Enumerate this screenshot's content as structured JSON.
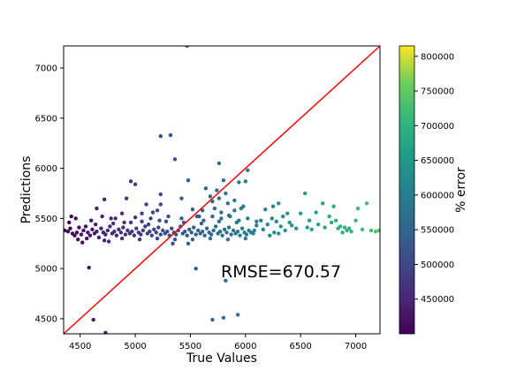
{
  "chart_data": {
    "type": "scatter",
    "title": "",
    "xlabel": "True Values",
    "ylabel": "Predictions",
    "xlim": [
      4350,
      7220
    ],
    "ylim": [
      4350,
      7220
    ],
    "xticks": [
      4500,
      5000,
      5500,
      6000,
      6500,
      7000
    ],
    "yticks": [
      4500,
      5000,
      5500,
      6000,
      6500,
      7000
    ],
    "grid": false,
    "annotation": "RMSE=670.57",
    "reference_line": {
      "from": [
        4350,
        4350
      ],
      "to": [
        7220,
        7220
      ],
      "color": "#ff0000"
    },
    "colorbar": {
      "label": "% error",
      "colormap": "viridis",
      "range": [
        400000,
        815000
      ],
      "ticks": [
        450000,
        500000,
        550000,
        600000,
        650000,
        700000,
        750000,
        800000
      ]
    },
    "series": [
      {
        "marker_color_by": "x",
        "points": [
          [
            4360,
            5380
          ],
          [
            4390,
            5370
          ],
          [
            4410,
            5400
          ],
          [
            4430,
            5350
          ],
          [
            4450,
            5330
          ],
          [
            4470,
            5360
          ],
          [
            4490,
            5410
          ],
          [
            4510,
            5340
          ],
          [
            4530,
            5380
          ],
          [
            4550,
            5420
          ],
          [
            4570,
            5360
          ],
          [
            4590,
            5330
          ],
          [
            4610,
            5390
          ],
          [
            4630,
            5350
          ],
          [
            4650,
            5370
          ],
          [
            4670,
            5310
          ],
          [
            4690,
            5400
          ],
          [
            4710,
            5360
          ],
          [
            4730,
            5340
          ],
          [
            4750,
            5380
          ],
          [
            4770,
            5420
          ],
          [
            4790,
            5350
          ],
          [
            4810,
            5370
          ],
          [
            4830,
            5330
          ],
          [
            4850,
            5390
          ],
          [
            4870,
            5360
          ],
          [
            4890,
            5410
          ],
          [
            4910,
            5340
          ],
          [
            4930,
            5380
          ],
          [
            4950,
            5350
          ],
          [
            4970,
            5370
          ],
          [
            4990,
            5330
          ],
          [
            5010,
            5400
          ],
          [
            5030,
            5360
          ],
          [
            5050,
            5340
          ],
          [
            5070,
            5380
          ],
          [
            5090,
            5420
          ],
          [
            5110,
            5350
          ],
          [
            5130,
            5370
          ],
          [
            5150,
            5330
          ],
          [
            5170,
            5390
          ],
          [
            5190,
            5360
          ],
          [
            5210,
            5410
          ],
          [
            5230,
            5340
          ],
          [
            5250,
            5380
          ],
          [
            5270,
            5350
          ],
          [
            5290,
            5370
          ],
          [
            5310,
            5330
          ],
          [
            5330,
            5400
          ],
          [
            5350,
            5360
          ],
          [
            5370,
            5340
          ],
          [
            5390,
            5380
          ],
          [
            5410,
            5420
          ],
          [
            5430,
            5350
          ],
          [
            5450,
            5370
          ],
          [
            5470,
            5330
          ],
          [
            5490,
            5390
          ],
          [
            5510,
            5360
          ],
          [
            5530,
            5410
          ],
          [
            5550,
            5340
          ],
          [
            5570,
            5380
          ],
          [
            5590,
            5350
          ],
          [
            5610,
            5370
          ],
          [
            5630,
            5330
          ],
          [
            5650,
            5400
          ],
          [
            5670,
            5360
          ],
          [
            5690,
            5340
          ],
          [
            5710,
            5380
          ],
          [
            5730,
            5420
          ],
          [
            5750,
            5350
          ],
          [
            5770,
            5370
          ],
          [
            5790,
            5330
          ],
          [
            5810,
            5390
          ],
          [
            5830,
            5360
          ],
          [
            5850,
            5410
          ],
          [
            5870,
            5340
          ],
          [
            5890,
            5380
          ],
          [
            5910,
            5350
          ],
          [
            5930,
            5370
          ],
          [
            5950,
            5330
          ],
          [
            5970,
            5400
          ],
          [
            5990,
            5360
          ],
          [
            6010,
            5340
          ],
          [
            6030,
            5380
          ],
          [
            6050,
            5360
          ],
          [
            6070,
            5350
          ],
          [
            4400,
            5460
          ],
          [
            4480,
            5290
          ],
          [
            4560,
            5300
          ],
          [
            4640,
            5440
          ],
          [
            4720,
            5280
          ],
          [
            4800,
            5450
          ],
          [
            4880,
            5300
          ],
          [
            4960,
            5460
          ],
          [
            5040,
            5290
          ],
          [
            5120,
            5440
          ],
          [
            5200,
            5300
          ],
          [
            5280,
            5470
          ],
          [
            5360,
            5290
          ],
          [
            5440,
            5460
          ],
          [
            5520,
            5290
          ],
          [
            5600,
            5450
          ],
          [
            5680,
            5300
          ],
          [
            5760,
            5470
          ],
          [
            5840,
            5290
          ],
          [
            5920,
            5460
          ],
          [
            6000,
            5300
          ],
          [
            6080,
            5380
          ],
          [
            4420,
            5520
          ],
          [
            4460,
            5500
          ],
          [
            4520,
            5260
          ],
          [
            4600,
            5480
          ],
          [
            4700,
            5520
          ],
          [
            4760,
            5270
          ],
          [
            4820,
            5500
          ],
          [
            4900,
            5460
          ],
          [
            5000,
            5510
          ],
          [
            5060,
            5470
          ],
          [
            5140,
            5500
          ],
          [
            5220,
            5480
          ],
          [
            5300,
            5520
          ],
          [
            5340,
            5250
          ],
          [
            5420,
            5500
          ],
          [
            5480,
            5250
          ],
          [
            5560,
            5520
          ],
          [
            5620,
            5480
          ],
          [
            5700,
            5520
          ],
          [
            5780,
            5500
          ],
          [
            5860,
            5520
          ],
          [
            5940,
            5480
          ],
          [
            6020,
            5500
          ],
          [
            6100,
            5470
          ],
          [
            4580,
            5010
          ],
          [
            4620,
            4490
          ],
          [
            4730,
            4360
          ],
          [
            4650,
            5600
          ],
          [
            4720,
            5690
          ],
          [
            4780,
            5500
          ],
          [
            4880,
            5550
          ],
          [
            4920,
            5700
          ],
          [
            4960,
            5870
          ],
          [
            5000,
            5840
          ],
          [
            5060,
            5550
          ],
          [
            5100,
            5640
          ],
          [
            5160,
            5560
          ],
          [
            5200,
            5580
          ],
          [
            5230,
            5740
          ],
          [
            5230,
            5640
          ],
          [
            5230,
            6320
          ],
          [
            5320,
            6330
          ],
          [
            5360,
            6090
          ],
          [
            5420,
            5700
          ],
          [
            5480,
            5880
          ],
          [
            5470,
            7220
          ],
          [
            5520,
            5590
          ],
          [
            5580,
            5520
          ],
          [
            5610,
            5580
          ],
          [
            5640,
            5800
          ],
          [
            5680,
            5720
          ],
          [
            5700,
            5670
          ],
          [
            5720,
            5600
          ],
          [
            5740,
            5780
          ],
          [
            5760,
            5700
          ],
          [
            5760,
            6050
          ],
          [
            5780,
            5560
          ],
          [
            5800,
            5880
          ],
          [
            5820,
            5750
          ],
          [
            5840,
            5650
          ],
          [
            5900,
            5680
          ],
          [
            5960,
            5600
          ],
          [
            5940,
            5860
          ],
          [
            5980,
            5620
          ],
          [
            6000,
            5870
          ],
          [
            6020,
            5980
          ],
          [
            5900,
            5580
          ],
          [
            5850,
            5530
          ],
          [
            5700,
            4490
          ],
          [
            5820,
            4880
          ],
          [
            5800,
            4510
          ],
          [
            5930,
            4540
          ],
          [
            5550,
            5000
          ],
          [
            6100,
            5430
          ],
          [
            6140,
            5480
          ],
          [
            6160,
            5390
          ],
          [
            6200,
            5440
          ],
          [
            6220,
            5330
          ],
          [
            6240,
            5500
          ],
          [
            6260,
            5360
          ],
          [
            6280,
            5470
          ],
          [
            6300,
            5350
          ],
          [
            6320,
            5420
          ],
          [
            6340,
            5520
          ],
          [
            6360,
            5380
          ],
          [
            6400,
            5460
          ],
          [
            6420,
            5430
          ],
          [
            6460,
            5400
          ],
          [
            6500,
            5550
          ],
          [
            6540,
            5750
          ],
          [
            6560,
            5410
          ],
          [
            6580,
            5480
          ],
          [
            6600,
            5390
          ],
          [
            6640,
            5560
          ],
          [
            6660,
            5440
          ],
          [
            6700,
            5650
          ],
          [
            6720,
            5410
          ],
          [
            6760,
            5520
          ],
          [
            6780,
            5460
          ],
          [
            6800,
            5620
          ],
          [
            6820,
            5480
          ],
          [
            6840,
            5400
          ],
          [
            6860,
            5420
          ],
          [
            6880,
            5360
          ],
          [
            6900,
            5410
          ],
          [
            6920,
            5380
          ],
          [
            6940,
            5400
          ],
          [
            6960,
            5370
          ],
          [
            7000,
            5480
          ],
          [
            7020,
            5600
          ],
          [
            7060,
            5390
          ],
          [
            7100,
            5650
          ],
          [
            7140,
            5380
          ],
          [
            7180,
            5370
          ],
          [
            7210,
            5380
          ],
          [
            6300,
            5650
          ],
          [
            6380,
            5550
          ],
          [
            6250,
            5620
          ],
          [
            6180,
            5590
          ]
        ]
      }
    ]
  }
}
